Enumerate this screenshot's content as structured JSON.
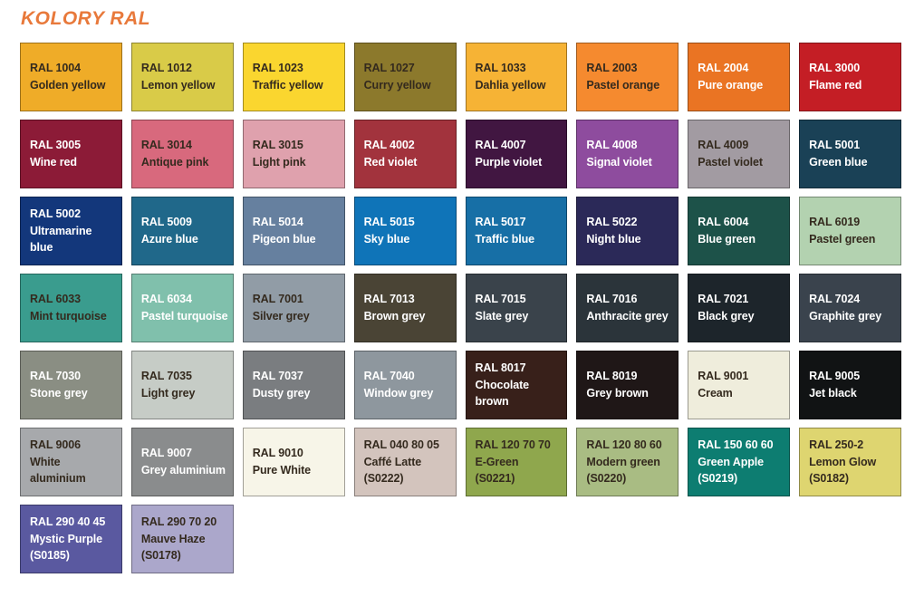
{
  "page": {
    "title": "KOLORY RAL"
  },
  "colors": {
    "title_text": "#E8793B",
    "page_background": "#FFFFFF",
    "dark_text": "#342A1E",
    "light_text": "#FFFFFF",
    "swatch_border": "rgba(0,0,0,0.35)"
  },
  "swatches": [
    {
      "code": "RAL 1004",
      "name": "Golden yellow",
      "note": "",
      "bg": "#EFAC28",
      "fg": "#342A1E"
    },
    {
      "code": "RAL 1012",
      "name": "Lemon yellow",
      "note": "",
      "bg": "#D9CB48",
      "fg": "#342A1E"
    },
    {
      "code": "RAL 1023",
      "name": "Traffic yellow",
      "note": "",
      "bg": "#FAD62F",
      "fg": "#342A1E"
    },
    {
      "code": "RAL 1027",
      "name": "Curry yellow",
      "note": "",
      "bg": "#8C792C",
      "fg": "#342A1E"
    },
    {
      "code": "RAL 1033",
      "name": "Dahlia yellow",
      "note": "",
      "bg": "#F6B335",
      "fg": "#342A1E"
    },
    {
      "code": "RAL 2003",
      "name": "Pastel orange",
      "note": "",
      "bg": "#F58A2F",
      "fg": "#342A1E"
    },
    {
      "code": "RAL 2004",
      "name": "Pure orange",
      "note": "",
      "bg": "#EA7423",
      "fg": "#FFFFFF"
    },
    {
      "code": "RAL 3000",
      "name": "Flame red",
      "note": "",
      "bg": "#C41E25",
      "fg": "#FFFFFF"
    },
    {
      "code": "RAL 3005",
      "name": "Wine red",
      "note": "",
      "bg": "#8C1B37",
      "fg": "#FFFFFF"
    },
    {
      "code": "RAL 3014",
      "name": "Antique pink",
      "note": "",
      "bg": "#D8697D",
      "fg": "#342A1E"
    },
    {
      "code": "RAL 3015",
      "name": "Light pink",
      "note": "",
      "bg": "#DFA1AD",
      "fg": "#342A1E"
    },
    {
      "code": "RAL 4002",
      "name": "Red violet",
      "note": "",
      "bg": "#A2333D",
      "fg": "#FFFFFF"
    },
    {
      "code": "RAL 4007",
      "name": "Purple violet",
      "note": "",
      "bg": "#411641",
      "fg": "#FFFFFF"
    },
    {
      "code": "RAL 4008",
      "name": "Signal violet",
      "note": "",
      "bg": "#8E4C9E",
      "fg": "#FFFFFF"
    },
    {
      "code": "RAL 4009",
      "name": "Pastel violet",
      "note": "",
      "bg": "#A29BA2",
      "fg": "#342A1E"
    },
    {
      "code": "RAL 5001",
      "name": "Green blue",
      "note": "",
      "bg": "#1A4156",
      "fg": "#FFFFFF"
    },
    {
      "code": "RAL 5002",
      "name": "Ultramarine\nblue",
      "note": "",
      "bg": "#13377B",
      "fg": "#FFFFFF"
    },
    {
      "code": "RAL 5009",
      "name": "Azure blue",
      "note": "",
      "bg": "#20688A",
      "fg": "#FFFFFF"
    },
    {
      "code": "RAL 5014",
      "name": "Pigeon blue",
      "note": "",
      "bg": "#66809F",
      "fg": "#FFFFFF"
    },
    {
      "code": "RAL 5015",
      "name": "Sky blue",
      "note": "",
      "bg": "#0F74B8",
      "fg": "#FFFFFF"
    },
    {
      "code": "RAL 5017",
      "name": "Traffic blue",
      "note": "",
      "bg": "#176FA6",
      "fg": "#FFFFFF"
    },
    {
      "code": "RAL 5022",
      "name": "Night blue",
      "note": "",
      "bg": "#2B2958",
      "fg": "#FFFFFF"
    },
    {
      "code": "RAL 6004",
      "name": "Blue green",
      "note": "",
      "bg": "#1D5249",
      "fg": "#FFFFFF"
    },
    {
      "code": "RAL 6019",
      "name": "Pastel green",
      "note": "",
      "bg": "#B3D2B0",
      "fg": "#342A1E"
    },
    {
      "code": "RAL 6033",
      "name": "Mint turquoise",
      "note": "",
      "bg": "#3A9C8E",
      "fg": "#342A1E"
    },
    {
      "code": "RAL 6034",
      "name": "Pastel turquoise",
      "note": "",
      "bg": "#80C0AC",
      "fg": "#FFFFFF"
    },
    {
      "code": "RAL 7001",
      "name": "Silver grey",
      "note": "",
      "bg": "#919CA6",
      "fg": "#342A1E"
    },
    {
      "code": "RAL 7013",
      "name": "Brown grey",
      "note": "",
      "bg": "#4A4435",
      "fg": "#FFFFFF"
    },
    {
      "code": "RAL 7015",
      "name": "Slate grey",
      "note": "",
      "bg": "#3A434B",
      "fg": "#FFFFFF"
    },
    {
      "code": "RAL 7016",
      "name": "Anthracite grey",
      "note": "",
      "bg": "#2B343A",
      "fg": "#FFFFFF"
    },
    {
      "code": "RAL 7021",
      "name": "Black grey",
      "note": "",
      "bg": "#1D252B",
      "fg": "#FFFFFF"
    },
    {
      "code": "RAL 7024",
      "name": "Graphite grey",
      "note": "",
      "bg": "#3A434D",
      "fg": "#FFFFFF"
    },
    {
      "code": "RAL 7030",
      "name": "Stone grey",
      "note": "",
      "bg": "#8A8E83",
      "fg": "#FFFFFF"
    },
    {
      "code": "RAL 7035",
      "name": "Light grey",
      "note": "",
      "bg": "#C6CCC6",
      "fg": "#342A1E"
    },
    {
      "code": "RAL 7037",
      "name": "Dusty grey",
      "note": "",
      "bg": "#7A7D80",
      "fg": "#FFFFFF"
    },
    {
      "code": "RAL 7040",
      "name": "Window grey",
      "note": "",
      "bg": "#8E979E",
      "fg": "#FFFFFF"
    },
    {
      "code": "RAL 8017",
      "name": "Chocolate\nbrown",
      "note": "",
      "bg": "#38201A",
      "fg": "#FFFFFF"
    },
    {
      "code": "RAL 8019",
      "name": "Grey brown",
      "note": "",
      "bg": "#1F1717",
      "fg": "#FFFFFF"
    },
    {
      "code": "RAL 9001",
      "name": "Cream",
      "note": "",
      "bg": "#EFEDDC",
      "fg": "#342A1E"
    },
    {
      "code": "RAL 9005",
      "name": "Jet black",
      "note": "",
      "bg": "#111314",
      "fg": "#FFFFFF"
    },
    {
      "code": "RAL 9006",
      "name": "White\naluminium",
      "note": "",
      "bg": "#A7A9AC",
      "fg": "#342A1E"
    },
    {
      "code": "RAL 9007",
      "name": "Grey aluminium",
      "note": "",
      "bg": "#8A8C8D",
      "fg": "#FFFFFF"
    },
    {
      "code": "RAL 9010",
      "name": "Pure White",
      "note": "",
      "bg": "#F7F5E8",
      "fg": "#342A1E"
    },
    {
      "code": "RAL 040 80 05",
      "name": "Caffé Latte",
      "note": "(S0222)",
      "bg": "#D3C4BD",
      "fg": "#342A1E"
    },
    {
      "code": "RAL 120 70 70",
      "name": "E-Green",
      "note": "(S0221)",
      "bg": "#8FA74D",
      "fg": "#342A1E"
    },
    {
      "code": "RAL 120 80 60",
      "name": "Modern green",
      "note": "(S0220)",
      "bg": "#A9BC83",
      "fg": "#342A1E"
    },
    {
      "code": "RAL 150 60 60",
      "name": "Green Apple",
      "note": "(S0219)",
      "bg": "#0D7D71",
      "fg": "#FFFFFF"
    },
    {
      "code": "RAL 250-2",
      "name": "Lemon Glow",
      "note": "(S0182)",
      "bg": "#DED570",
      "fg": "#342A1E"
    },
    {
      "code": "RAL 290 40 45",
      "name": "Mystic Purple",
      "note": "(S0185)",
      "bg": "#5A59A0",
      "fg": "#FFFFFF"
    },
    {
      "code": "RAL 290 70 20",
      "name": "Mauve Haze",
      "note": "(S0178)",
      "bg": "#ABA7CB",
      "fg": "#342A1E"
    }
  ]
}
